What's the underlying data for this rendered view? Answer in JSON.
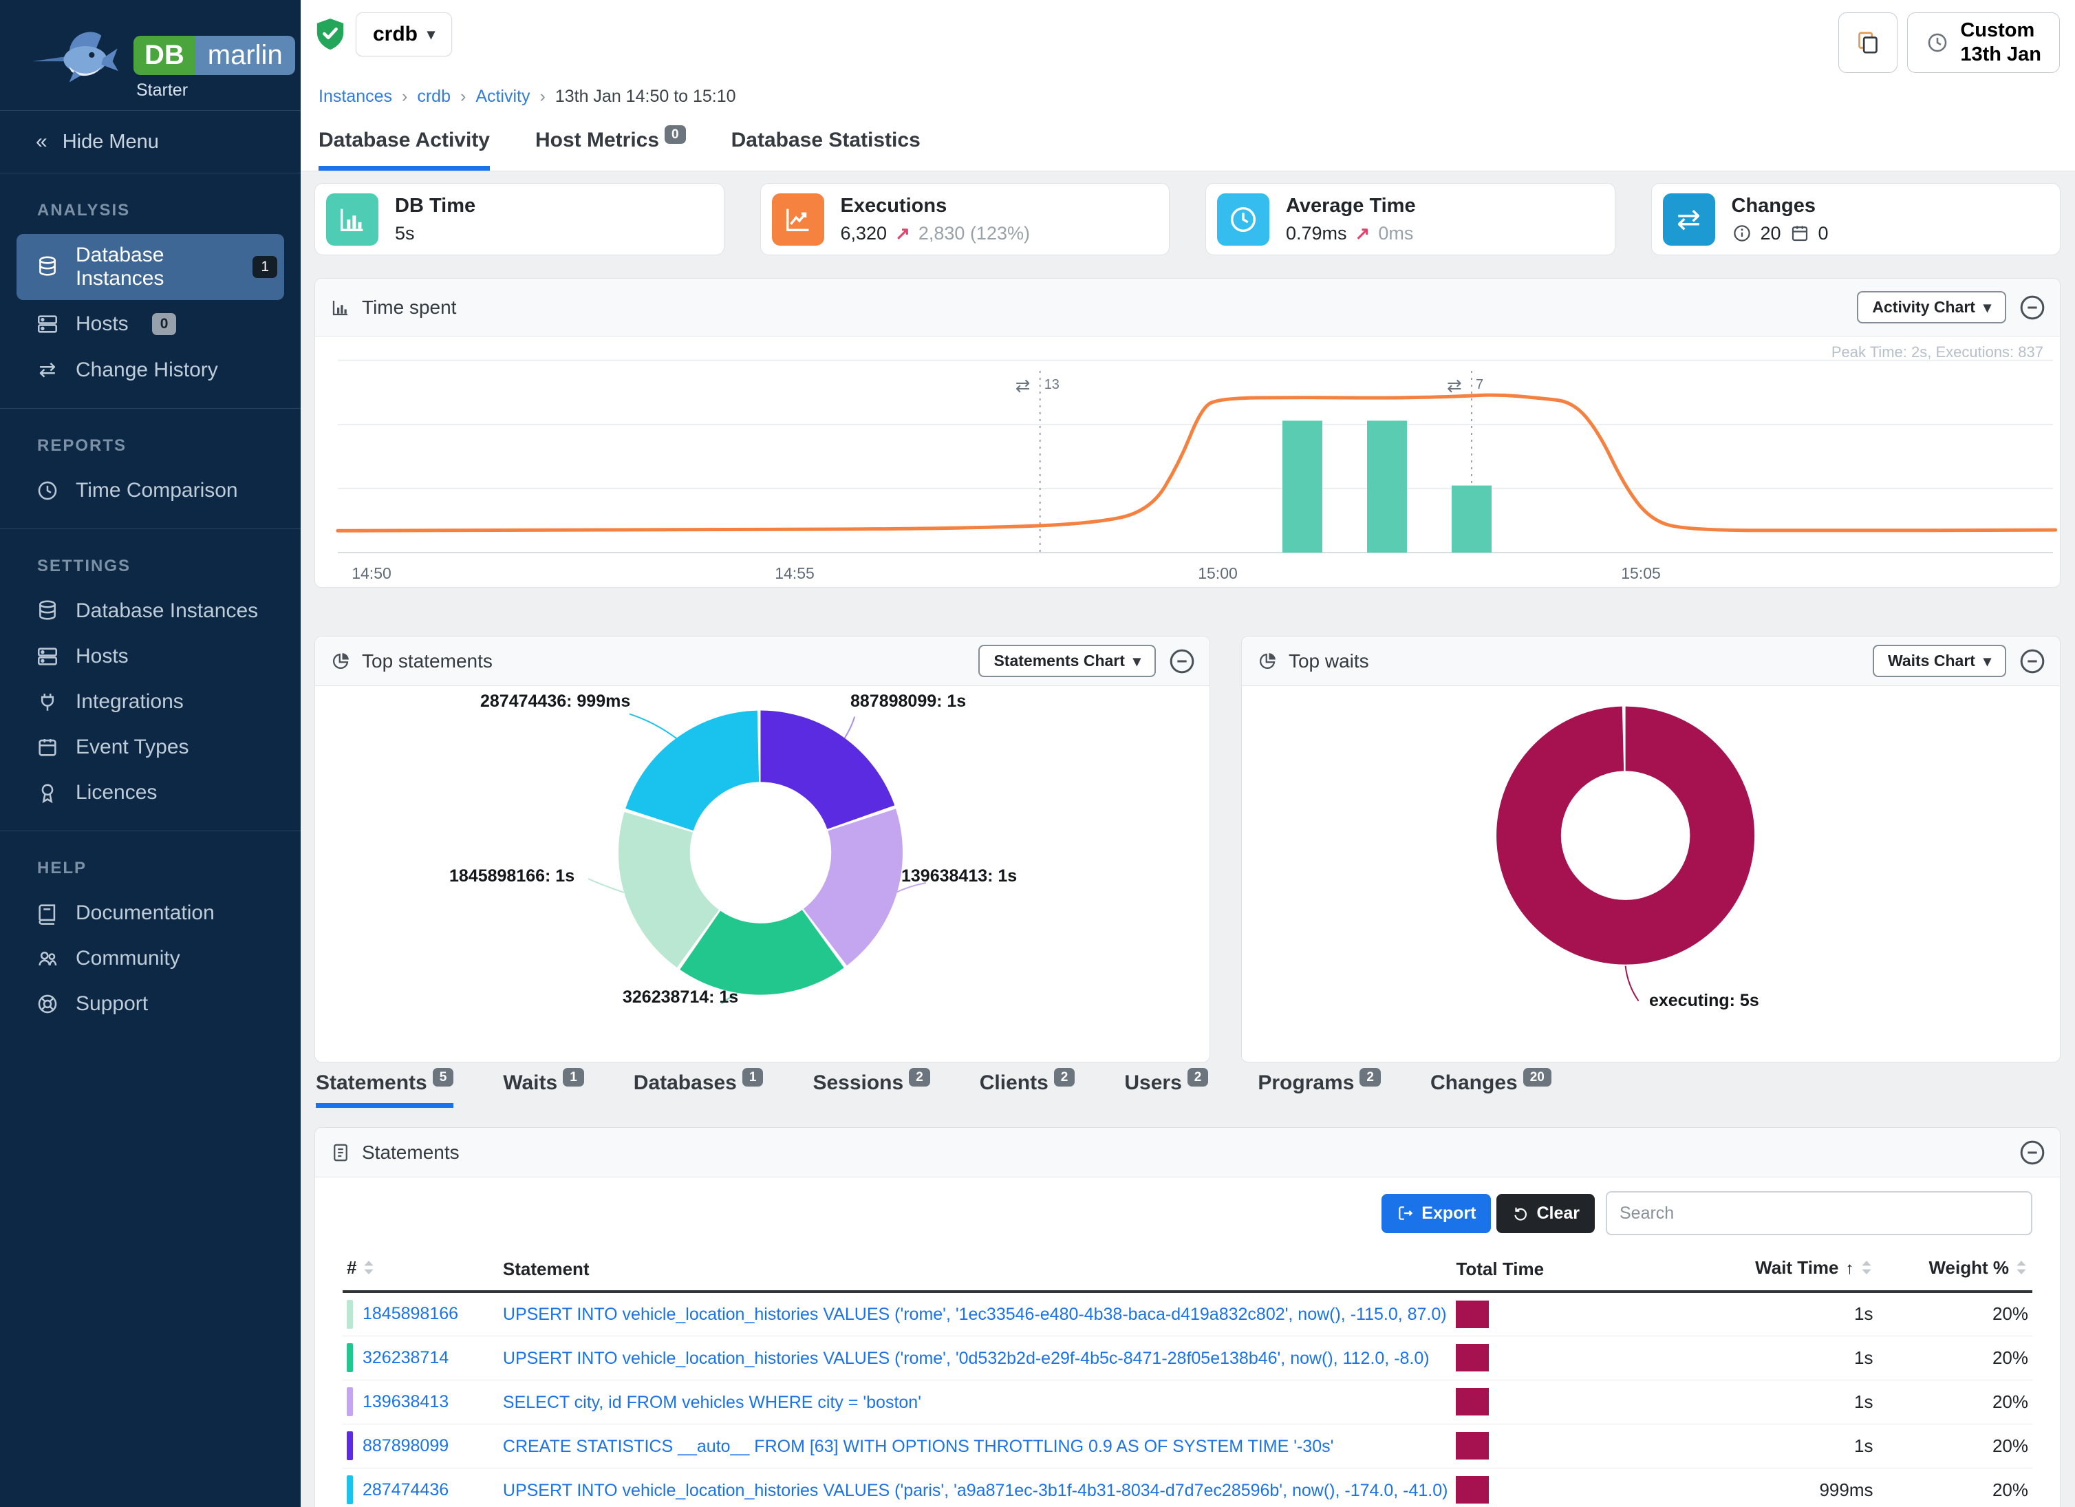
{
  "icons": {
    "caret_down": "▾",
    "double_left": "«",
    "exchange": "⇄",
    "trend_up": "↗"
  },
  "app": {
    "brand_db": "DB",
    "brand_marlin": "marlin",
    "edition": "Starter"
  },
  "sidebar": {
    "hide_menu": "Hide Menu",
    "sections": [
      {
        "title": "ANALYSIS",
        "items": [
          {
            "label": "Database Instances",
            "badge": "1"
          },
          {
            "label": "Hosts",
            "badge": "0"
          },
          {
            "label": "Change History"
          }
        ]
      },
      {
        "title": "REPORTS",
        "items": [
          {
            "label": "Time Comparison"
          }
        ]
      },
      {
        "title": "SETTINGS",
        "items": [
          {
            "label": "Database Instances"
          },
          {
            "label": "Hosts"
          },
          {
            "label": "Integrations"
          },
          {
            "label": "Event Types"
          },
          {
            "label": "Licences"
          }
        ]
      },
      {
        "title": "HELP",
        "items": [
          {
            "label": "Documentation"
          },
          {
            "label": "Community"
          },
          {
            "label": "Support"
          }
        ]
      }
    ]
  },
  "topbar": {
    "instance_selector": "crdb",
    "breadcrumb": {
      "link1": "Instances",
      "link2": "crdb",
      "link3": "Activity",
      "current": "13th Jan 14:50 to 15:10"
    },
    "time_range_button": {
      "line1": "Custom",
      "line2": "13th Jan"
    }
  },
  "main_tabs": [
    {
      "label": "Database Activity",
      "active": true
    },
    {
      "label": "Host Metrics",
      "badge": "0"
    },
    {
      "label": "Database Statistics"
    }
  ],
  "kpis": [
    {
      "title": "DB Time",
      "value": "5s",
      "icon": "bar-chart-icon",
      "color": "#4fccb4"
    },
    {
      "title": "Executions",
      "value": "6,320",
      "secondary": "2,830 (123%)",
      "icon": "line-chart-icon",
      "color": "#f68240"
    },
    {
      "title": "Average Time",
      "value": "0.79ms",
      "secondary": "0ms",
      "icon": "clock-icon",
      "color": "#36bdf0"
    },
    {
      "title": "Changes",
      "info_count": "20",
      "calendar_count": "0",
      "icon": "exchange-icon",
      "color": "#1d9ad1"
    }
  ],
  "panels": {
    "time_spent": {
      "title": "Time spent",
      "chart_select": "Activity Chart",
      "note": "Peak Time: 2s, Executions: 837"
    },
    "top_statements": {
      "title": "Top statements",
      "chart_select": "Statements Chart"
    },
    "top_waits": {
      "title": "Top waits",
      "chart_select": "Waits Chart"
    },
    "statements": {
      "title": "Statements",
      "export_label": "Export",
      "clear_label": "Clear",
      "search_placeholder": "Search"
    }
  },
  "section_tabs": [
    {
      "label": "Statements",
      "badge": "5",
      "active": true
    },
    {
      "label": "Waits",
      "badge": "1"
    },
    {
      "label": "Databases",
      "badge": "1"
    },
    {
      "label": "Sessions",
      "badge": "2"
    },
    {
      "label": "Clients",
      "badge": "2"
    },
    {
      "label": "Users",
      "badge": "2"
    },
    {
      "label": "Programs",
      "badge": "2"
    },
    {
      "label": "Changes",
      "badge": "20"
    }
  ],
  "table": {
    "headers": {
      "id": "#",
      "statement": "Statement",
      "total_time": "Total Time",
      "wait_time": "Wait Time",
      "weight": "Weight %"
    },
    "rows": [
      {
        "id": "1845898166",
        "color": "#b9e7d2",
        "statement": "UPSERT INTO vehicle_location_histories VALUES ('rome', '1ec33546-e480-4b38-baca-d419a832c802', now(), -115.0, 87.0)",
        "wait_time": "1s",
        "weight": "20%"
      },
      {
        "id": "326238714",
        "color": "#22c78e",
        "statement": "UPSERT INTO vehicle_location_histories VALUES ('rome', '0d532b2d-e29f-4b5c-8471-28f05e138b46', now(), 112.0, -8.0)",
        "wait_time": "1s",
        "weight": "20%"
      },
      {
        "id": "139638413",
        "color": "#c3a6ef",
        "statement": "SELECT city, id FROM vehicles WHERE city = 'boston'",
        "wait_time": "1s",
        "weight": "20%"
      },
      {
        "id": "887898099",
        "color": "#5a2be0",
        "statement": "CREATE STATISTICS __auto__ FROM [63] WITH OPTIONS THROTTLING 0.9 AS OF SYSTEM TIME '-30s'",
        "wait_time": "1s",
        "weight": "20%"
      },
      {
        "id": "287474436",
        "color": "#1ac3ee",
        "statement": "UPSERT INTO vehicle_location_histories VALUES ('paris', 'a9a871ec-3b1f-4b31-8034-d7d7ec28596b', now(), -174.0, -41.0)",
        "wait_time": "999ms",
        "weight": "20%"
      }
    ]
  },
  "chart_data": [
    {
      "id": "time_spent",
      "type": "line+bar",
      "title": "Time spent",
      "x_axis": {
        "ticks": [
          "14:50",
          "14:55",
          "15:00",
          "15:05"
        ],
        "tick_minutes": [
          0,
          5,
          10,
          15
        ],
        "range_minutes": [
          -0.4,
          19.9
        ]
      },
      "y_axis": {
        "unit": "seconds",
        "range": [
          0,
          2.55
        ],
        "gridlines": [
          0,
          0.85,
          1.7,
          2.55
        ]
      },
      "line_series": {
        "name": "DB Time",
        "color": "#f4813f",
        "points": [
          [
            -0.4,
            0.29
          ],
          [
            4,
            0.3
          ],
          [
            7,
            0.32
          ],
          [
            8.5,
            0.38
          ],
          [
            9.2,
            0.55
          ],
          [
            9.55,
            1.2
          ],
          [
            9.8,
            1.9
          ],
          [
            10.0,
            2.05
          ],
          [
            11,
            2.06
          ],
          [
            12,
            2.05
          ],
          [
            12.8,
            2.07
          ],
          [
            13.3,
            2.1
          ],
          [
            13.8,
            2.05
          ],
          [
            14.2,
            2.0
          ],
          [
            14.5,
            1.6
          ],
          [
            14.8,
            0.9
          ],
          [
            15.1,
            0.45
          ],
          [
            15.5,
            0.3
          ],
          [
            17,
            0.29
          ],
          [
            19.9,
            0.3
          ]
        ]
      },
      "bar_series": {
        "name": "Executions",
        "color": "#5accb1",
        "bars": [
          [
            11,
            1.75
          ],
          [
            12,
            1.75
          ],
          [
            13,
            0.89
          ]
        ]
      },
      "annotations": [
        {
          "x_minutes": 7.9,
          "label": "13"
        },
        {
          "x_minutes": 13.0,
          "label": "7"
        }
      ],
      "note": "Peak Time: 2s, Executions: 837"
    },
    {
      "id": "top_statements",
      "type": "donut",
      "legend_position": "callout-labels",
      "start": "12-oclock-clockwise",
      "slices": [
        {
          "label": "887898099: 1s",
          "value": 20,
          "color": "#5a2be0"
        },
        {
          "label": "139638413: 1s",
          "value": 20,
          "color": "#c3a6ef"
        },
        {
          "label": "326238714: 1s",
          "value": 20,
          "color": "#22c78e"
        },
        {
          "label": "1845898166: 1s",
          "value": 20,
          "color": "#b9e7d2"
        },
        {
          "label": "287474436: 999ms",
          "value": 20,
          "color": "#1ac3ee"
        }
      ]
    },
    {
      "id": "top_waits",
      "type": "donut",
      "legend_position": "callout-labels",
      "slices": [
        {
          "label": "executing: 5s",
          "value": 100,
          "color": "#a5124f"
        }
      ]
    }
  ]
}
